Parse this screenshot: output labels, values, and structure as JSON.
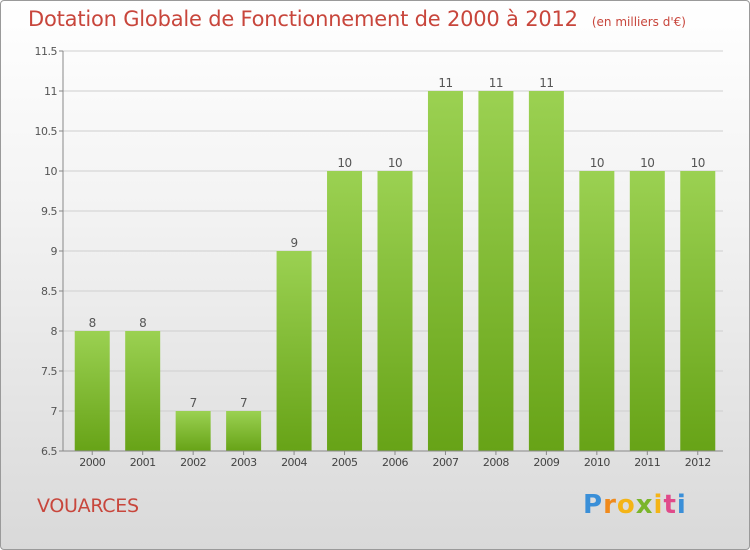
{
  "title": "Dotation Globale de Fonctionnement de 2000 à 2012",
  "subtitle": "(en milliers d'€)",
  "commune": "VOUARCES",
  "logo": {
    "p": "P",
    "r": "r",
    "o": "o",
    "x": "x",
    "i1": "i",
    "t": "t",
    "i2": "i"
  },
  "colors": {
    "bar_top": "#9bd152",
    "bar_bottom": "#67a317",
    "title": "#c8463c",
    "grid": "#cfcfcf"
  },
  "chart_data": {
    "type": "bar",
    "title": "Dotation Globale de Fonctionnement de 2000 à 2012",
    "subtitle": "(en milliers d'€)",
    "categories": [
      "2000",
      "2001",
      "2002",
      "2003",
      "2004",
      "2005",
      "2006",
      "2007",
      "2008",
      "2009",
      "2010",
      "2011",
      "2012"
    ],
    "values": [
      8,
      8,
      7,
      7,
      9,
      10,
      10,
      11,
      11,
      11,
      10,
      10,
      10
    ],
    "ylim": [
      6.5,
      11.5
    ],
    "yticks": [
      6.5,
      7,
      7.5,
      8,
      8.5,
      9,
      9.5,
      10,
      10.5,
      11,
      11.5
    ],
    "ytick_labels": [
      "6.5",
      "7",
      "7.5",
      "8",
      "8.5",
      "9",
      "9.5",
      "10",
      "10.5",
      "11",
      "11.5"
    ],
    "grid": true,
    "xlabel": "",
    "ylabel": ""
  }
}
